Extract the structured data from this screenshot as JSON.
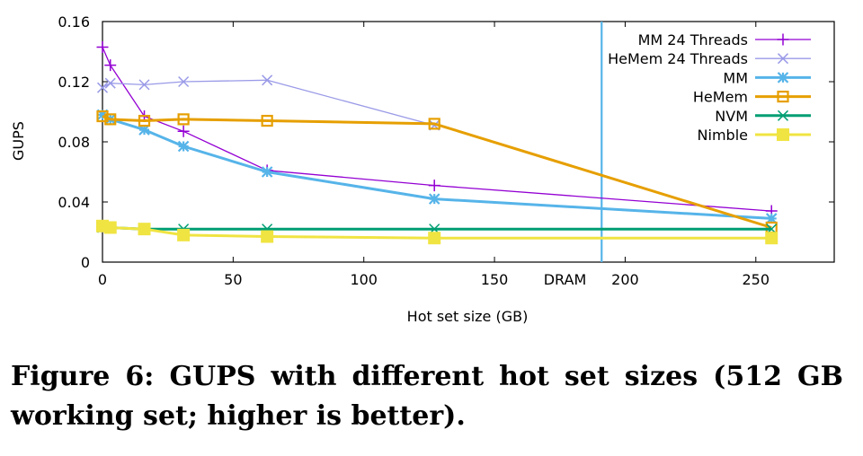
{
  "chart_data": {
    "type": "line",
    "xlabel": "Hot set size (GB)",
    "ylabel": "GUPS",
    "xlim": [
      0,
      280
    ],
    "ylim": [
      0,
      0.16
    ],
    "x_ticks": [
      0,
      50,
      100,
      150,
      200,
      250
    ],
    "y_ticks": [
      0,
      0.04,
      0.08,
      0.12,
      0.16
    ],
    "y_tick_labels": [
      "0",
      "0.04",
      "0.08",
      "0.12",
      "0.16"
    ],
    "grid": false,
    "legend_position": "top-right",
    "annotations": [
      {
        "type": "vertical-line",
        "x": 191,
        "label": "DRAM",
        "color": "#56b4e9"
      }
    ],
    "series": [
      {
        "name": "MM 24 Threads",
        "color": "#9400d3",
        "marker": "plus",
        "linewidth": 1.3,
        "x": [
          0,
          3,
          16,
          31,
          63,
          127,
          256
        ],
        "y": [
          0.143,
          0.131,
          0.097,
          0.087,
          0.061,
          0.051,
          0.034
        ]
      },
      {
        "name": "HeMem 24 Threads",
        "color": "#9a9ae8",
        "marker": "cross",
        "linewidth": 1.3,
        "x": [
          0,
          3,
          16,
          31,
          63,
          127
        ],
        "y": [
          0.116,
          0.119,
          0.118,
          0.12,
          0.121,
          0.091
        ]
      },
      {
        "name": "MM",
        "color": "#56b4e9",
        "marker": "star",
        "linewidth": 3,
        "x": [
          0,
          3,
          16,
          31,
          63,
          127,
          256
        ],
        "y": [
          0.098,
          0.095,
          0.088,
          0.077,
          0.06,
          0.042,
          0.029
        ]
      },
      {
        "name": "HeMem",
        "color": "#e69f00",
        "marker": "open-square",
        "linewidth": 3,
        "x": [
          0,
          3,
          16,
          31,
          63,
          127,
          256
        ],
        "y": [
          0.097,
          0.095,
          0.094,
          0.095,
          0.094,
          0.092,
          0.023
        ]
      },
      {
        "name": "NVM",
        "color": "#009e73",
        "marker": "cross",
        "linewidth": 3,
        "x": [
          0,
          3,
          16,
          31,
          63,
          127,
          256
        ],
        "y": [
          0.023,
          0.023,
          0.022,
          0.022,
          0.022,
          0.022,
          0.022
        ]
      },
      {
        "name": "Nimble",
        "color": "#f0e442",
        "marker": "filled-square",
        "linewidth": 3,
        "x": [
          0,
          3,
          16,
          31,
          63,
          127,
          256
        ],
        "y": [
          0.024,
          0.023,
          0.022,
          0.018,
          0.017,
          0.016,
          0.016
        ]
      }
    ]
  },
  "caption": "Figure 6: GUPS with different hot set sizes (512 GB working set; higher is better)."
}
